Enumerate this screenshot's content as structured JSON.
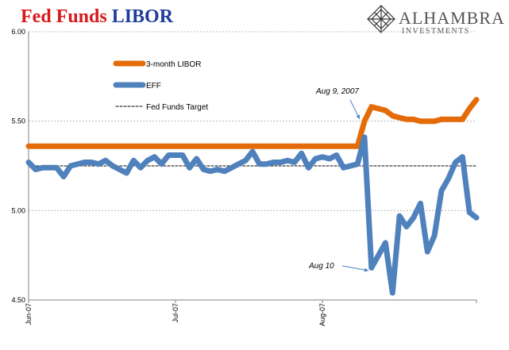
{
  "title": {
    "part1": "Fed Funds",
    "part2": "LIBOR"
  },
  "logo": {
    "name": "ALHAMBRA",
    "sub": "INVESTMENTS",
    "icon": "diamond-lattice-icon"
  },
  "colors": {
    "libor": "#E36C09",
    "eff": "#4F81BD",
    "target": "#000000",
    "title_red": "#d7191c",
    "title_blue": "#1f3c99"
  },
  "chart_data": {
    "type": "line",
    "title": "Fed Funds LIBOR",
    "xlabel": "",
    "ylabel": "",
    "ylim": [
      4.5,
      6.0
    ],
    "yticks": [
      "4.50",
      "5.00",
      "5.50",
      "6.00"
    ],
    "xticks": [
      "Jun-07",
      "Jul-07",
      "Aug-07"
    ],
    "x": [
      "2007-06-01",
      "2007-06-04",
      "2007-06-05",
      "2007-06-06",
      "2007-06-07",
      "2007-06-08",
      "2007-06-11",
      "2007-06-12",
      "2007-06-13",
      "2007-06-14",
      "2007-06-15",
      "2007-06-18",
      "2007-06-19",
      "2007-06-20",
      "2007-06-21",
      "2007-06-22",
      "2007-06-25",
      "2007-06-26",
      "2007-06-27",
      "2007-06-28",
      "2007-06-29",
      "2007-07-02",
      "2007-07-03",
      "2007-07-05",
      "2007-07-06",
      "2007-07-09",
      "2007-07-10",
      "2007-07-11",
      "2007-07-12",
      "2007-07-13",
      "2007-07-16",
      "2007-07-17",
      "2007-07-18",
      "2007-07-19",
      "2007-07-20",
      "2007-07-23",
      "2007-07-24",
      "2007-07-25",
      "2007-07-26",
      "2007-07-27",
      "2007-07-30",
      "2007-07-31",
      "2007-08-01",
      "2007-08-02",
      "2007-08-03",
      "2007-08-06",
      "2007-08-07",
      "2007-08-08",
      "2007-08-09",
      "2007-08-10",
      "2007-08-13",
      "2007-08-14",
      "2007-08-15",
      "2007-08-16",
      "2007-08-17",
      "2007-08-20",
      "2007-08-21",
      "2007-08-22",
      "2007-08-23",
      "2007-08-24",
      "2007-08-27",
      "2007-08-28",
      "2007-08-29",
      "2007-08-30",
      "2007-08-31"
    ],
    "series": [
      {
        "name": "3-month LIBOR",
        "values": [
          5.36,
          5.36,
          5.36,
          5.36,
          5.36,
          5.36,
          5.36,
          5.36,
          5.36,
          5.36,
          5.36,
          5.36,
          5.36,
          5.36,
          5.36,
          5.36,
          5.36,
          5.36,
          5.36,
          5.36,
          5.36,
          5.36,
          5.36,
          5.36,
          5.36,
          5.36,
          5.36,
          5.36,
          5.36,
          5.36,
          5.36,
          5.36,
          5.36,
          5.36,
          5.36,
          5.36,
          5.36,
          5.36,
          5.36,
          5.36,
          5.36,
          5.36,
          5.36,
          5.36,
          5.36,
          5.36,
          5.36,
          5.36,
          5.5,
          5.58,
          5.57,
          5.56,
          5.53,
          5.52,
          5.51,
          5.51,
          5.5,
          5.5,
          5.5,
          5.51,
          5.51,
          5.51,
          5.51,
          5.57,
          5.62
        ]
      },
      {
        "name": "EFF",
        "values": [
          5.27,
          5.23,
          5.24,
          5.24,
          5.24,
          5.19,
          5.25,
          5.26,
          5.27,
          5.27,
          5.26,
          5.28,
          5.25,
          5.23,
          5.21,
          5.28,
          5.24,
          5.28,
          5.3,
          5.26,
          5.31,
          5.31,
          5.31,
          5.24,
          5.29,
          5.23,
          5.22,
          5.23,
          5.22,
          5.24,
          5.26,
          5.28,
          5.33,
          5.26,
          5.26,
          5.27,
          5.27,
          5.28,
          5.27,
          5.32,
          5.24,
          5.29,
          5.3,
          5.29,
          5.31,
          5.24,
          5.25,
          5.26,
          5.41,
          4.68,
          4.75,
          4.82,
          4.54,
          4.97,
          4.91,
          4.96,
          5.04,
          4.77,
          4.86,
          5.11,
          5.18,
          5.27,
          5.3,
          4.99,
          4.96
        ]
      },
      {
        "name": "Fed Funds Target",
        "values": [
          5.25,
          5.25,
          5.25,
          5.25,
          5.25,
          5.25,
          5.25,
          5.25,
          5.25,
          5.25,
          5.25,
          5.25,
          5.25,
          5.25,
          5.25,
          5.25,
          5.25,
          5.25,
          5.25,
          5.25,
          5.25,
          5.25,
          5.25,
          5.25,
          5.25,
          5.25,
          5.25,
          5.25,
          5.25,
          5.25,
          5.25,
          5.25,
          5.25,
          5.25,
          5.25,
          5.25,
          5.25,
          5.25,
          5.25,
          5.25,
          5.25,
          5.25,
          5.25,
          5.25,
          5.25,
          5.25,
          5.25,
          5.25,
          5.25,
          5.25,
          5.25,
          5.25,
          5.25,
          5.25,
          5.25,
          5.25,
          5.25,
          5.25,
          5.25,
          5.25,
          5.25,
          5.25,
          5.25,
          5.25,
          5.25
        ]
      }
    ],
    "annotations": [
      {
        "text": "Aug 9, 2007",
        "x": "2007-08-09",
        "y": 5.57
      },
      {
        "text": "Aug 10",
        "x": "2007-08-10",
        "y": 4.68
      }
    ],
    "grid": true,
    "legend_position": "top-left"
  }
}
